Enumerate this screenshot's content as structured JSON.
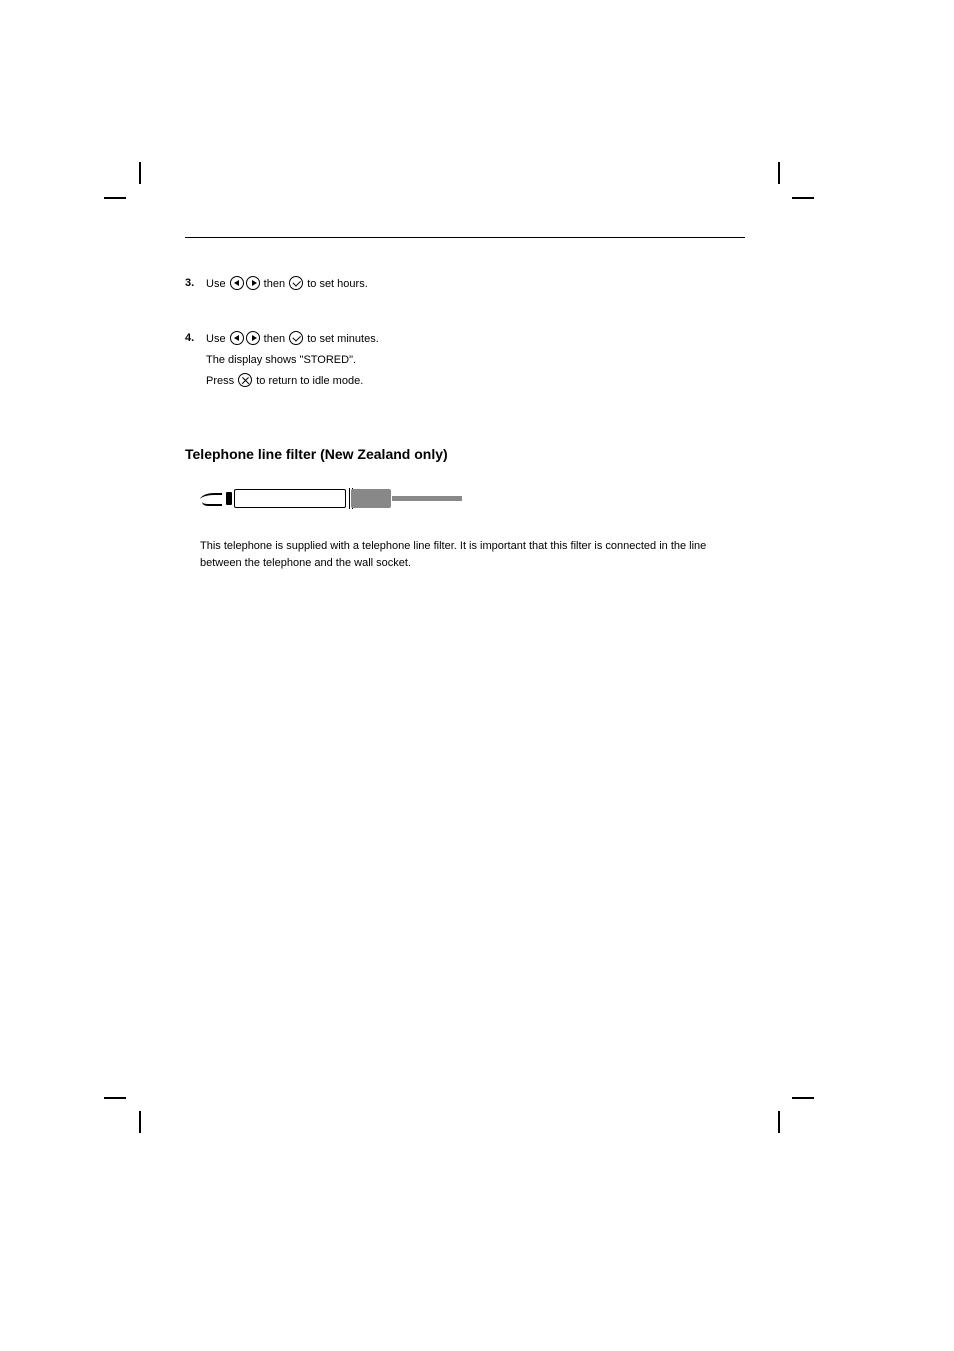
{
  "steps": [
    {
      "num": "3.",
      "main_pre": "Use ",
      "main_mid": " then ",
      "main_post": " to set hours."
    },
    {
      "num": "4.",
      "main_pre": "Use ",
      "main_mid": " then ",
      "main_post": " to set minutes.",
      "sub": "The display shows \"STORED\".",
      "sub2_pre": "Press ",
      "sub2_post": " to return to idle mode."
    }
  ],
  "section_title": "Telephone line filter (New Zealand only)",
  "paragraph": "This telephone is supplied with a telephone line filter. It is important that this filter is connected in the line between the telephone and the wall socket."
}
